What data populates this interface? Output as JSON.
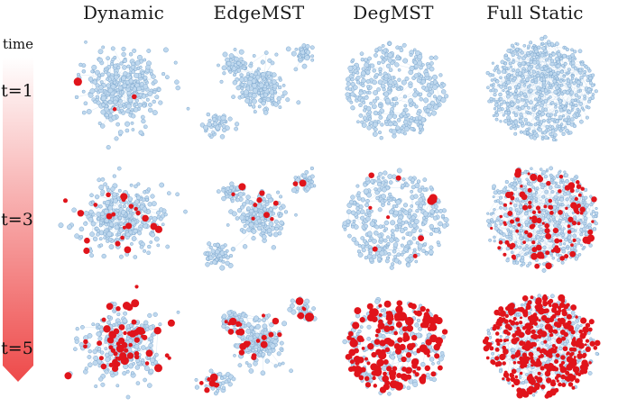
{
  "columns": [
    "Dynamic",
    "EdgeMST",
    "DegMST",
    "Full Static"
  ],
  "time_axis": {
    "title": "time",
    "rows": [
      "t=1",
      "t=3",
      "t=5"
    ]
  },
  "colors": {
    "node_fill": "#bfd8ee",
    "node_stroke": "#7fa9cf",
    "edge": "#a9c9e6",
    "highlight": "#e0141b",
    "arrow_top": "#ffffff",
    "arrow_bottom": "#ee4a4a"
  },
  "highlight_fraction": [
    [
      0.004,
      0.003,
      0.002,
      0.0
    ],
    [
      0.05,
      0.03,
      0.03,
      0.16
    ],
    [
      0.19,
      0.14,
      0.46,
      0.55
    ]
  ]
}
